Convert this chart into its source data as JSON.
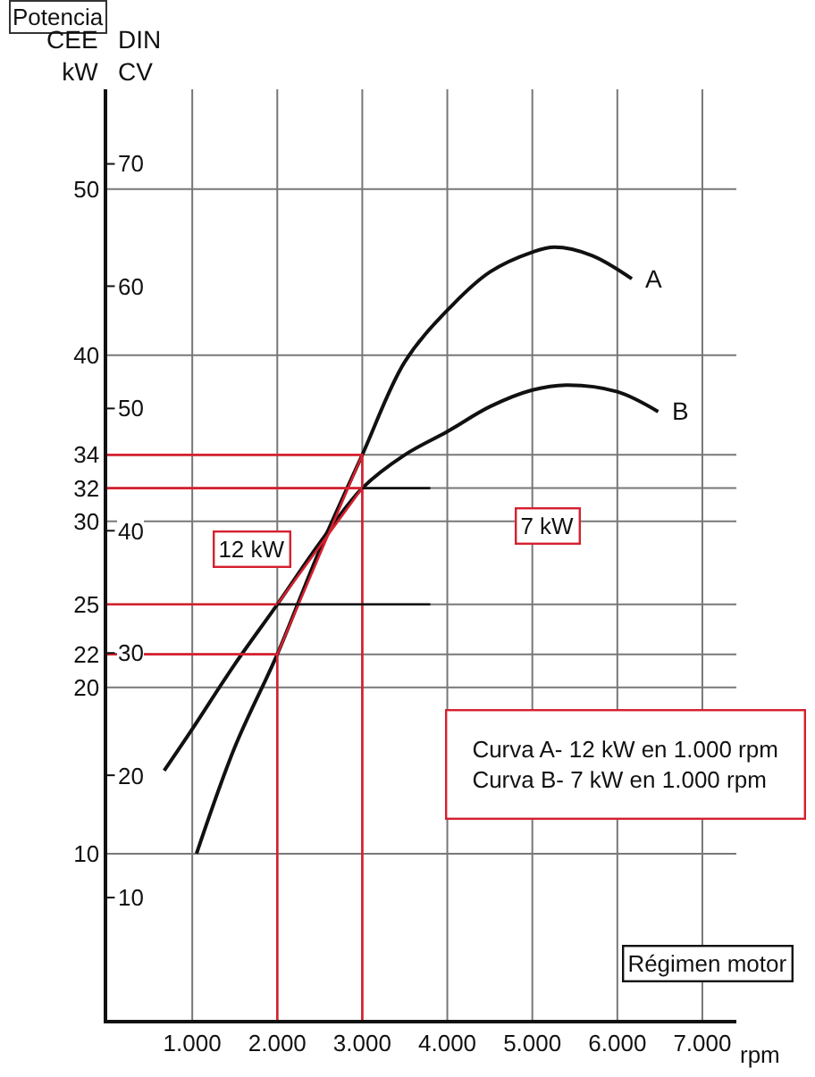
{
  "chart_data": {
    "type": "line",
    "title": "Potencia",
    "ylabel": "CEE\nkW",
    "y2label": "DIN\nCV",
    "xlabel": "rpm",
    "annotations": [
      "12 kW",
      "7 kW",
      "Curva A- 12 kW en 1.000 rpm\nCurva B- 7 kW en 1.000 rpm",
      "Régimen motor"
    ],
    "series": [
      {
        "name": "A",
        "color": "#111111",
        "x": [
          1050,
          1500,
          2000,
          2500,
          3000,
          3500,
          4000,
          4500,
          5000,
          5260,
          5700,
          6170
        ],
        "values": [
          10,
          16.4,
          22,
          28.3,
          34,
          39.6,
          42.7,
          45,
          46.2,
          46.5,
          46,
          44.6
        ]
      },
      {
        "name": "B",
        "color": "#111111",
        "x": [
          670,
          1000,
          1500,
          2000,
          2500,
          3000,
          3500,
          4000,
          4500,
          5000,
          5400,
          6000,
          6480
        ],
        "values": [
          15,
          17.5,
          21.4,
          25,
          28.7,
          32,
          34,
          35.4,
          36.9,
          37.9,
          38.2,
          37.8,
          36.6
        ]
      },
      {
        "color": "#d6202f",
        "x": [
          2000,
          3000
        ],
        "values": [
          22,
          34
        ]
      },
      {
        "color": "#d6202f",
        "x": [
          2000,
          3000
        ],
        "values": [
          25,
          32
        ]
      },
      {
        "color": "#d6202f",
        "x": [
          0,
          2000,
          2000
        ],
        "values": [
          22,
          22,
          0
        ]
      },
      {
        "color": "#d6202f",
        "x": [
          0,
          3000,
          3000
        ],
        "values": [
          34,
          34,
          0
        ]
      },
      {
        "color": "#d6202f",
        "x": [
          0,
          2000
        ],
        "values": [
          25,
          25
        ]
      },
      {
        "color": "#111111",
        "x": [
          2000,
          3800
        ],
        "values": [
          25,
          25
        ]
      },
      {
        "color": "#d6202f",
        "x": [
          0,
          3000
        ],
        "values": [
          32,
          32
        ]
      },
      {
        "color": "#111111",
        "x": [
          3000,
          3800
        ],
        "values": [
          32,
          32
        ]
      }
    ],
    "xlim": [
      0,
      7400
    ],
    "xticks": [
      {
        "value": 1000,
        "label": "1.000"
      },
      {
        "value": 2000,
        "label": "2.000"
      },
      {
        "value": 3000,
        "label": "3.000"
      },
      {
        "value": 4000,
        "label": "4.000"
      },
      {
        "value": 5000,
        "label": "5.000"
      },
      {
        "value": 6000,
        "label": "6.000"
      },
      {
        "value": 7000,
        "label": "7.000"
      }
    ],
    "ylim": [
      0,
      56
    ],
    "yticks": [
      10,
      20,
      22,
      25,
      30,
      32,
      34,
      40,
      50
    ],
    "y2lim": [
      0,
      76.1
    ],
    "y2ticks": [
      10,
      20,
      30,
      40,
      50,
      60,
      70
    ],
    "grid": true,
    "legend": false,
    "marker": "none",
    "line_style": "solid"
  }
}
